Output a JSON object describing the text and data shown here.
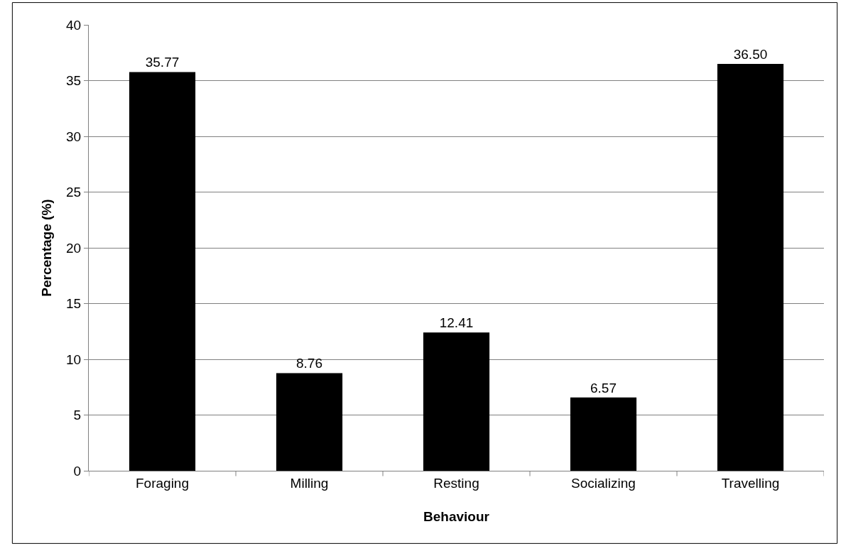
{
  "chart_data": {
    "type": "bar",
    "xlabel": "Behaviour",
    "ylabel": "Percentage (%)",
    "categories": [
      "Foraging",
      "Milling",
      "Resting",
      "Socializing",
      "Travelling"
    ],
    "values": [
      35.77,
      8.76,
      12.41,
      6.57,
      36.5
    ],
    "value_labels": [
      "35.77",
      "8.76",
      "12.41",
      "6.57",
      "36.50"
    ],
    "color": "#000000",
    "ylim": [
      0,
      40
    ],
    "yticks": [
      0,
      5,
      10,
      15,
      20,
      25,
      30,
      35,
      40
    ],
    "grid": "y"
  }
}
